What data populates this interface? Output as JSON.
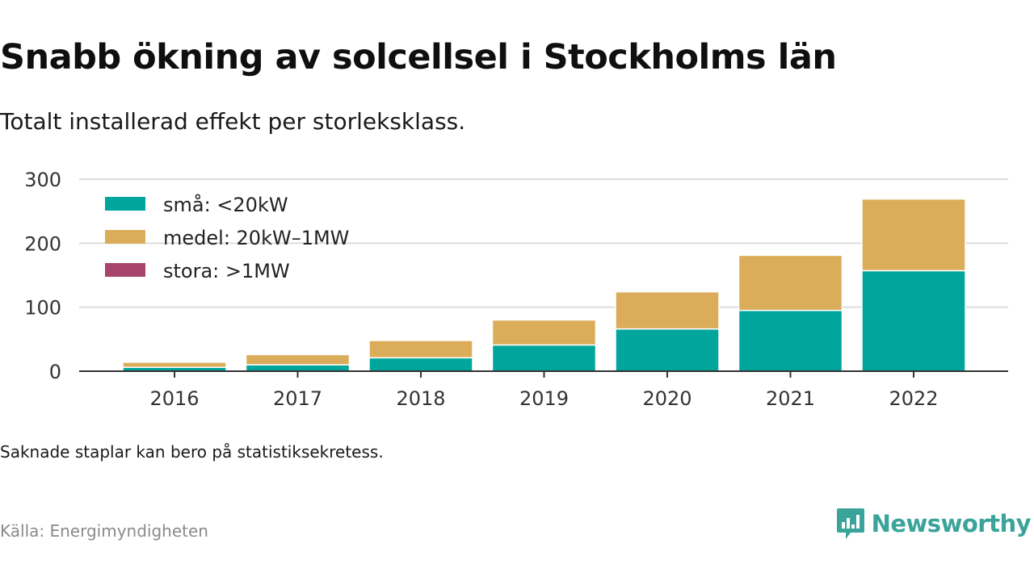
{
  "header": {
    "title": "Snabb ökning av solcellsel i Stockholms län",
    "subtitle": "Totalt installerad effekt per storleksklass."
  },
  "footer": {
    "note": "Saknade staplar kan bero på statistiksekretess.",
    "source": "Källa: Energimyndigheten",
    "brand": "Newsworthy"
  },
  "colors": {
    "small": "#00a59b",
    "medium": "#dbad5a",
    "large": "#a8436b",
    "grid": "#dddddd",
    "axis": "#333333",
    "brand": "#3aa39a"
  },
  "chart_data": {
    "type": "bar",
    "stacked": true,
    "categories": [
      "2016",
      "2017",
      "2018",
      "2019",
      "2020",
      "2021",
      "2022"
    ],
    "series": [
      {
        "name": "små: <20kW",
        "color": "#00a59b",
        "values": [
          6,
          10,
          21,
          41,
          66,
          95,
          157
        ]
      },
      {
        "name": "medel: 20kW–1MW",
        "color": "#dbad5a",
        "values": [
          8,
          16,
          27,
          39,
          58,
          86,
          112
        ]
      },
      {
        "name": "stora: >1MW",
        "color": "#a8436b",
        "values": [
          0,
          0,
          0,
          0,
          0,
          0,
          0
        ]
      }
    ],
    "yticks": [
      0,
      100,
      200,
      300
    ],
    "ylim": [
      0,
      300
    ],
    "grid": true,
    "legend_position": "top-left"
  }
}
